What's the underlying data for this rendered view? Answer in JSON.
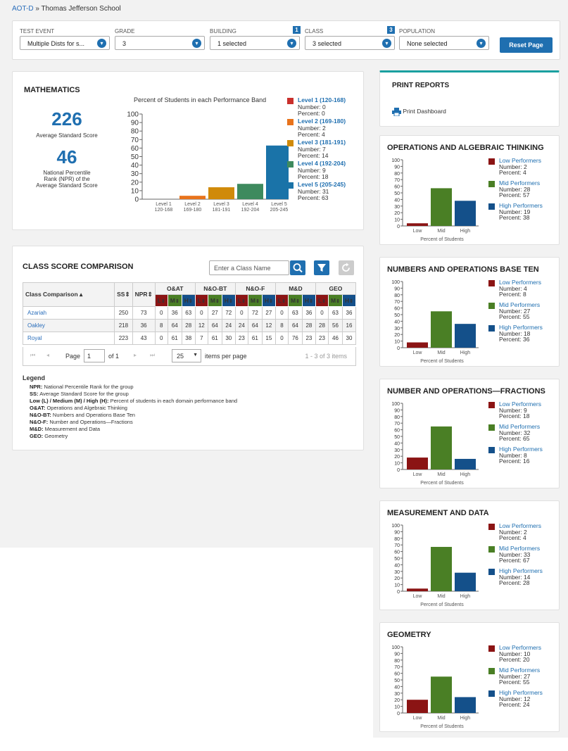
{
  "breadcrumb": {
    "link": "AOT-D",
    "separator": "»",
    "current": "Thomas Jefferson School"
  },
  "filters": {
    "test_event": {
      "label": "TEST EVENT",
      "value": "Multiple Dists for s..."
    },
    "grade": {
      "label": "GRADE",
      "value": "3"
    },
    "building": {
      "label": "BUILDING",
      "value": "1 selected",
      "badge": "1"
    },
    "class": {
      "label": "CLASS",
      "value": "3 selected",
      "badge": "3"
    },
    "population": {
      "label": "POPULATION",
      "value": "None selected"
    },
    "reset_label": "Reset Page"
  },
  "math": {
    "title": "MATHEMATICS",
    "avg_score": "226",
    "avg_label": "Average Standard Score",
    "npr": "46",
    "npr_label_1": "National Percentile",
    "npr_label_2": "Rank (NPR) of the",
    "npr_label_3": "Average Standard Score",
    "chart_title": "Percent of Students in each Performance Band",
    "legend": [
      {
        "name": "Level 1 (120-168)",
        "number": "Number: 0",
        "percent": "Percent: 0",
        "color": "#c9302c"
      },
      {
        "name": "Level 2 (169-180)",
        "number": "Number: 2",
        "percent": "Percent: 4",
        "color": "#e8731c"
      },
      {
        "name": "Level 3 (181-191)",
        "number": "Number: 7",
        "percent": "Percent: 14",
        "color": "#d08a0a"
      },
      {
        "name": "Level 4 (192-204)",
        "number": "Number: 9",
        "percent": "Percent: 18",
        "color": "#3e8a5e"
      },
      {
        "name": "Level 5 (205-245)",
        "number": "Number: 31",
        "percent": "Percent: 63",
        "color": "#1a73a8"
      }
    ]
  },
  "class_comp": {
    "title": "CLASS SCORE COMPARISON",
    "search_placeholder": "Enter a Class Name",
    "headers": {
      "name": "Class Comparison",
      "ss": "SS",
      "npr": "NPR",
      "domains": [
        "O&AT",
        "N&O-BT",
        "N&O-F",
        "M&D",
        "GEO"
      ],
      "l": "L",
      "m": "M",
      "h": "H"
    },
    "rows": [
      {
        "name": "Azariah",
        "cells": [
          "250",
          "73",
          "0",
          "36",
          "63",
          "0",
          "27",
          "72",
          "0",
          "72",
          "27",
          "0",
          "63",
          "36",
          "0",
          "63",
          "36"
        ]
      },
      {
        "name": "Oakley",
        "cells": [
          "218",
          "36",
          "8",
          "64",
          "28",
          "12",
          "64",
          "24",
          "24",
          "64",
          "12",
          "8",
          "64",
          "28",
          "28",
          "56",
          "16"
        ]
      },
      {
        "name": "Royal",
        "cells": [
          "223",
          "43",
          "0",
          "61",
          "38",
          "7",
          "61",
          "30",
          "23",
          "61",
          "15",
          "0",
          "76",
          "23",
          "23",
          "46",
          "30"
        ]
      }
    ],
    "pager": {
      "page_label": "Page",
      "page": "1",
      "of": "of 1",
      "per_page": "25",
      "per_page_label": "items per page",
      "summary": "1 - 3 of 3 items"
    },
    "legend_title": "Legend",
    "legend": [
      {
        "k": "NPR:",
        "v": "National Percentile Rank for the group"
      },
      {
        "k": "SS:",
        "v": "Average Standard Score for the group"
      },
      {
        "k": "Low (L) / Medium (M) / High (H):",
        "v": "Percent of students in each domain performance band"
      },
      {
        "k": "O&AT:",
        "v": "Operations and Algebraic Thinking"
      },
      {
        "k": "N&O-BT:",
        "v": "Numbers and Operations Base Ten"
      },
      {
        "k": "N&O-F:",
        "v": "Number and Operations—Fractions"
      },
      {
        "k": "M&D:",
        "v": "Measurement and Data"
      },
      {
        "k": "GEO:",
        "v": "Geometry"
      }
    ]
  },
  "print": {
    "title": "PRINT REPORTS",
    "link": "Print Dashboard"
  },
  "colors": {
    "low": "#8b1414",
    "mid": "#4a7f25",
    "high": "#14508a",
    "accent": "#1f6fb0"
  },
  "domains": [
    {
      "title": "OPERATIONS AND ALGEBRAIC THINKING",
      "low": {
        "n": "Number: 2",
        "p": "Percent: 4"
      },
      "mid": {
        "n": "Number: 28",
        "p": "Percent: 57"
      },
      "high": {
        "n": "Number: 19",
        "p": "Percent: 38"
      }
    },
    {
      "title": "NUMBERS AND OPERATIONS BASE TEN",
      "low": {
        "n": "Number: 4",
        "p": "Percent: 8"
      },
      "mid": {
        "n": "Number: 27",
        "p": "Percent: 55"
      },
      "high": {
        "n": "Number: 18",
        "p": "Percent: 36"
      }
    },
    {
      "title": "NUMBER AND OPERATIONS—FRACTIONS",
      "low": {
        "n": "Number: 9",
        "p": "Percent: 18"
      },
      "mid": {
        "n": "Number: 32",
        "p": "Percent: 65"
      },
      "high": {
        "n": "Number: 8",
        "p": "Percent: 16"
      }
    },
    {
      "title": "MEASUREMENT AND DATA",
      "low": {
        "n": "Number: 2",
        "p": "Percent: 4"
      },
      "mid": {
        "n": "Number: 33",
        "p": "Percent: 67"
      },
      "high": {
        "n": "Number: 14",
        "p": "Percent: 28"
      }
    },
    {
      "title": "GEOMETRY",
      "low": {
        "n": "Number: 10",
        "p": "Percent: 20"
      },
      "mid": {
        "n": "Number: 27",
        "p": "Percent: 55"
      },
      "high": {
        "n": "Number: 12",
        "p": "Percent: 24"
      }
    }
  ],
  "domain_labels": {
    "low": "Low Performers",
    "mid": "Mid Performers",
    "high": "High Performers",
    "x_low": "Low",
    "x_mid": "Mid",
    "x_high": "High",
    "xlabel": "Percent of Students"
  },
  "chart_data": [
    {
      "type": "bar",
      "title": "Percent of Students in each Performance Band",
      "categories": [
        "Level 1",
        "Level 2",
        "Level 3",
        "Level 4",
        "Level 5"
      ],
      "sublabels": [
        "120-168",
        "169-180",
        "181-191",
        "192-204",
        "205-245"
      ],
      "values": [
        0,
        4,
        14,
        18,
        63
      ],
      "ylim": [
        0,
        100
      ],
      "yticks": [
        0,
        10,
        20,
        30,
        40,
        50,
        60,
        70,
        80,
        90,
        100
      ]
    },
    {
      "type": "bar",
      "title": "OPERATIONS AND ALGEBRAIC THINKING",
      "categories": [
        "Low",
        "Mid",
        "High"
      ],
      "values": [
        4,
        57,
        38
      ],
      "xlabel": "Percent of Students",
      "ylim": [
        0,
        100
      ]
    },
    {
      "type": "bar",
      "title": "NUMBERS AND OPERATIONS BASE TEN",
      "categories": [
        "Low",
        "Mid",
        "High"
      ],
      "values": [
        8,
        55,
        36
      ],
      "xlabel": "Percent of Students",
      "ylim": [
        0,
        100
      ]
    },
    {
      "type": "bar",
      "title": "NUMBER AND OPERATIONS—FRACTIONS",
      "categories": [
        "Low",
        "Mid",
        "High"
      ],
      "values": [
        18,
        65,
        16
      ],
      "xlabel": "Percent of Students",
      "ylim": [
        0,
        100
      ]
    },
    {
      "type": "bar",
      "title": "MEASUREMENT AND DATA",
      "categories": [
        "Low",
        "Mid",
        "High"
      ],
      "values": [
        4,
        67,
        28
      ],
      "xlabel": "Percent of Students",
      "ylim": [
        0,
        100
      ]
    },
    {
      "type": "bar",
      "title": "GEOMETRY",
      "categories": [
        "Low",
        "Mid",
        "High"
      ],
      "values": [
        20,
        55,
        24
      ],
      "xlabel": "Percent of Students",
      "ylim": [
        0,
        100
      ]
    }
  ]
}
